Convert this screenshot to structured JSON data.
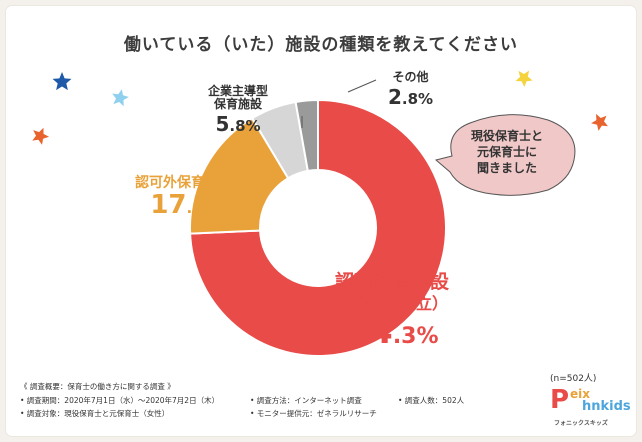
{
  "title": "働いている（いた）施設の種類を教えてください",
  "chart_data": {
    "type": "pie",
    "style": "donut",
    "title": "働いている（いた）施設の種類を教えてください",
    "slices": [
      {
        "name": "認可保育施設",
        "subname": "（公立・私立）",
        "value": 74.3,
        "display_int": "74",
        "display_dec": ".3%",
        "color": "#e84b48"
      },
      {
        "name": "認可外保育施設",
        "subname": "",
        "value": 17.1,
        "display_int": "17",
        "display_dec": ".1%",
        "color": "#e9a23a"
      },
      {
        "name": "企業主導型",
        "subname": "保育施設",
        "value": 5.8,
        "display_int": "5",
        "display_dec": ".8%",
        "color": "#d6d6d6"
      },
      {
        "name": "その他",
        "subname": "",
        "value": 2.8,
        "display_int": "2",
        "display_dec": ".8%",
        "color": "#9a9a9a"
      }
    ],
    "legend": "none"
  },
  "bubble": {
    "lines": [
      "現役保育士と",
      "元保育士に",
      "聞きました"
    ],
    "color": "#f0c8c8"
  },
  "sample": "(n=502人)",
  "notes": {
    "heading": "《 調査概要：保育士の働き方に関する調査 》",
    "period": "• 調査期間：2020年7月1日（水）〜2020年7月2日（木）",
    "method": "• 調査方法：インターネット調査",
    "count": "• 調査人数：502人",
    "target": "• 調査対象：現役保育士と元保育士（女性）",
    "provider": "• モニター提供元：ゼネラルリサーチ"
  },
  "logo": {
    "letters": "P",
    "top": "eix",
    "bottom": "hnkids",
    "sub": "フォニックスキッズ"
  },
  "stars": [
    {
      "color": "#1e5aa8"
    },
    {
      "color": "#8fd0ee"
    },
    {
      "color": "#e8632d"
    },
    {
      "color": "#f5d33c"
    },
    {
      "color": "#e8632d"
    }
  ]
}
